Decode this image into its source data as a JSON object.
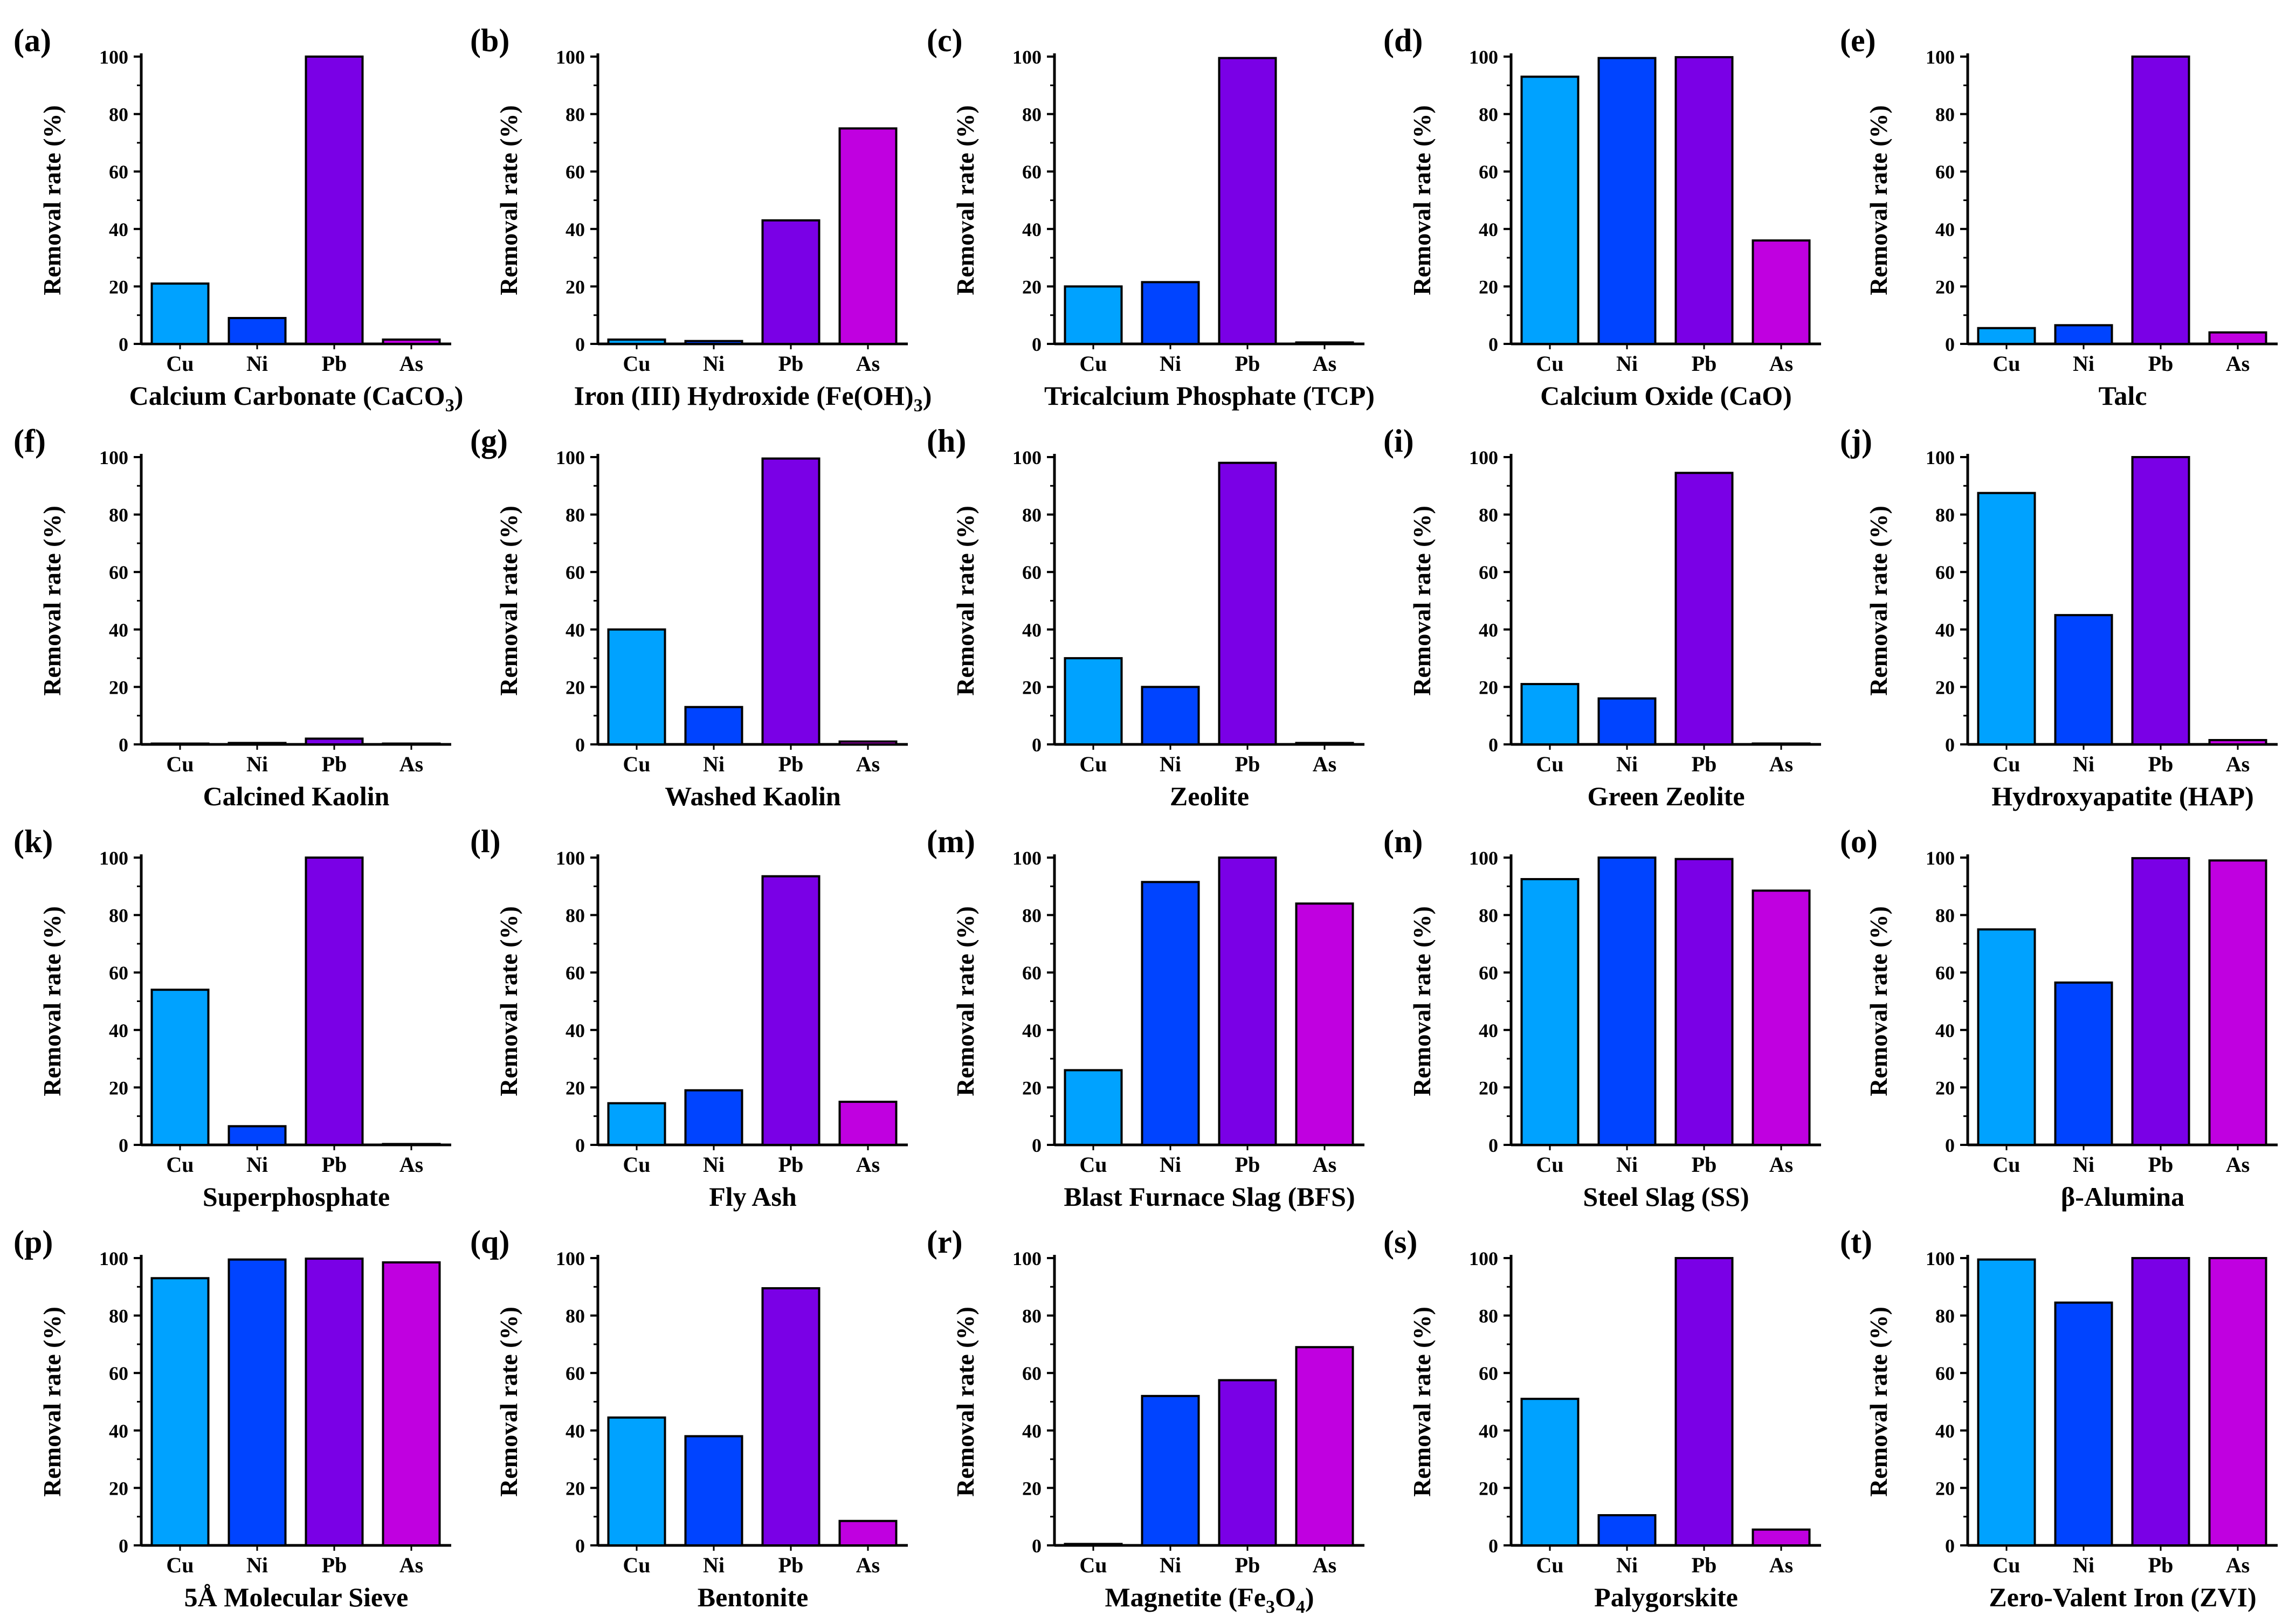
{
  "figure": {
    "categories": [
      "Cu",
      "Ni",
      "Pb",
      "As"
    ],
    "colors": [
      "#00a2ff",
      "#0044ff",
      "#7a00e6",
      "#c000e0"
    ],
    "ylabel": "Removal rate (%)",
    "yticks": [
      "0",
      "20",
      "40",
      "60",
      "80",
      "100"
    ],
    "ylim": [
      0,
      100
    ]
  },
  "chart_data": [
    {
      "type": "bar",
      "panel": "(a)",
      "title": "Calcium Carbonate (CaCO",
      "title_sub": "3",
      "title_tail": ")",
      "categories": [
        "Cu",
        "Ni",
        "Pb",
        "As"
      ],
      "values": [
        21,
        9,
        100,
        1.5
      ],
      "ylabel": "Removal rate (%)",
      "ylim": [
        0,
        100
      ]
    },
    {
      "type": "bar",
      "panel": "(b)",
      "title": "Iron (III) Hydroxide (Fe(OH)",
      "title_sub": "3",
      "title_tail": ")",
      "categories": [
        "Cu",
        "Ni",
        "Pb",
        "As"
      ],
      "values": [
        1.5,
        1,
        43,
        75
      ],
      "ylabel": "Removal rate (%)",
      "ylim": [
        0,
        100
      ]
    },
    {
      "type": "bar",
      "panel": "(c)",
      "title": "Tricalcium Phosphate (TCP)",
      "categories": [
        "Cu",
        "Ni",
        "Pb",
        "As"
      ],
      "values": [
        20,
        21.5,
        99.5,
        0.5
      ],
      "ylabel": "Removal rate (%)",
      "ylim": [
        0,
        100
      ]
    },
    {
      "type": "bar",
      "panel": "(d)",
      "title": "Calcium Oxide (CaO)",
      "categories": [
        "Cu",
        "Ni",
        "Pb",
        "As"
      ],
      "values": [
        93,
        99.5,
        99.8,
        36
      ],
      "ylabel": "Removal rate (%)",
      "ylim": [
        0,
        100
      ]
    },
    {
      "type": "bar",
      "panel": "(e)",
      "title": "Talc",
      "categories": [
        "Cu",
        "Ni",
        "Pb",
        "As"
      ],
      "values": [
        5.5,
        6.5,
        100,
        4
      ],
      "ylabel": "Removal rate (%)",
      "ylim": [
        0,
        100
      ]
    },
    {
      "type": "bar",
      "panel": "(f)",
      "title": "Calcined Kaolin",
      "categories": [
        "Cu",
        "Ni",
        "Pb",
        "As"
      ],
      "values": [
        0.2,
        0.5,
        2,
        0.2
      ],
      "ylabel": "Removal rate (%)",
      "ylim": [
        0,
        100
      ]
    },
    {
      "type": "bar",
      "panel": "(g)",
      "title": "Washed Kaolin",
      "categories": [
        "Cu",
        "Ni",
        "Pb",
        "As"
      ],
      "values": [
        40,
        13,
        99.5,
        1
      ],
      "ylabel": "Removal rate (%)",
      "ylim": [
        0,
        100
      ]
    },
    {
      "type": "bar",
      "panel": "(h)",
      "title": "Zeolite",
      "categories": [
        "Cu",
        "Ni",
        "Pb",
        "As"
      ],
      "values": [
        30,
        20,
        98,
        0.5
      ],
      "ylabel": "Removal rate (%)",
      "ylim": [
        0,
        100
      ]
    },
    {
      "type": "bar",
      "panel": "(i)",
      "title": "Green Zeolite",
      "categories": [
        "Cu",
        "Ni",
        "Pb",
        "As"
      ],
      "values": [
        21,
        16,
        94.5,
        0.3
      ],
      "ylabel": "Removal rate (%)",
      "ylim": [
        0,
        100
      ]
    },
    {
      "type": "bar",
      "panel": "(j)",
      "title": "Hydroxyapatite (HAP)",
      "categories": [
        "Cu",
        "Ni",
        "Pb",
        "As"
      ],
      "values": [
        87.5,
        45,
        100,
        1.5
      ],
      "ylabel": "Removal rate (%)",
      "ylim": [
        0,
        100
      ]
    },
    {
      "type": "bar",
      "panel": "(k)",
      "title": "Superphosphate",
      "categories": [
        "Cu",
        "Ni",
        "Pb",
        "As"
      ],
      "values": [
        54,
        6.5,
        100,
        0.3
      ],
      "ylabel": "Removal rate (%)",
      "ylim": [
        0,
        100
      ]
    },
    {
      "type": "bar",
      "panel": "(l)",
      "title": "Fly Ash",
      "categories": [
        "Cu",
        "Ni",
        "Pb",
        "As"
      ],
      "values": [
        14.5,
        19,
        93.5,
        15
      ],
      "ylabel": "Removal rate (%)",
      "ylim": [
        0,
        100
      ]
    },
    {
      "type": "bar",
      "panel": "(m)",
      "title": "Blast Furnace Slag (BFS)",
      "categories": [
        "Cu",
        "Ni",
        "Pb",
        "As"
      ],
      "values": [
        26,
        91.5,
        100,
        84
      ],
      "ylabel": "Removal rate (%)",
      "ylim": [
        0,
        100
      ]
    },
    {
      "type": "bar",
      "panel": "(n)",
      "title": "Steel Slag (SS)",
      "categories": [
        "Cu",
        "Ni",
        "Pb",
        "As"
      ],
      "values": [
        92.5,
        100,
        99.5,
        88.5
      ],
      "ylabel": "Removal rate (%)",
      "ylim": [
        0,
        100
      ]
    },
    {
      "type": "bar",
      "panel": "(o)",
      "title": "β-Alumina",
      "categories": [
        "Cu",
        "Ni",
        "Pb",
        "As"
      ],
      "values": [
        75,
        56.5,
        99.8,
        99
      ],
      "ylabel": "Removal rate (%)",
      "ylim": [
        0,
        100
      ]
    },
    {
      "type": "bar",
      "panel": "(p)",
      "title": "5Å Molecular Sieve",
      "categories": [
        "Cu",
        "Ni",
        "Pb",
        "As"
      ],
      "values": [
        93,
        99.5,
        99.8,
        98.5
      ],
      "ylabel": "Removal rate (%)",
      "ylim": [
        0,
        100
      ]
    },
    {
      "type": "bar",
      "panel": "(q)",
      "title": "Bentonite",
      "categories": [
        "Cu",
        "Ni",
        "Pb",
        "As"
      ],
      "values": [
        44.5,
        38,
        89.5,
        8.5
      ],
      "ylabel": "Removal rate (%)",
      "ylim": [
        0,
        100
      ]
    },
    {
      "type": "bar",
      "panel": "(r)",
      "title": "Magnetite (Fe",
      "title_sub": "3",
      "title_mid": "O",
      "title_sub2": "4",
      "title_tail": ")",
      "categories": [
        "Cu",
        "Ni",
        "Pb",
        "As"
      ],
      "values": [
        0.5,
        52,
        57.5,
        69
      ],
      "ylabel": "Removal rate (%)",
      "ylim": [
        0,
        100
      ]
    },
    {
      "type": "bar",
      "panel": "(s)",
      "title": "Palygorskite",
      "categories": [
        "Cu",
        "Ni",
        "Pb",
        "As"
      ],
      "values": [
        51,
        10.5,
        100,
        5.5
      ],
      "ylabel": "Removal rate (%)",
      "ylim": [
        0,
        100
      ]
    },
    {
      "type": "bar",
      "panel": "(t)",
      "title": "Zero-Valent Iron (ZVI)",
      "categories": [
        "Cu",
        "Ni",
        "Pb",
        "As"
      ],
      "values": [
        99.5,
        84.5,
        100,
        100
      ],
      "ylabel": "Removal rate (%)",
      "ylim": [
        0,
        100
      ]
    }
  ]
}
